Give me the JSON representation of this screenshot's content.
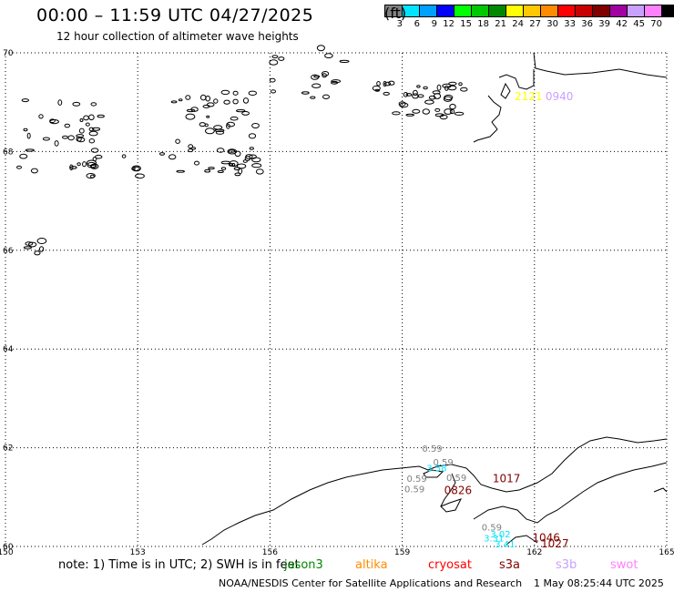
{
  "title": "00:00 – 11:59 UTC 04/27/2025",
  "subtitle": "12 hour collection of altimeter wave heights",
  "legend": {
    "unit": "(ft)",
    "bins": [
      {
        "label": "3",
        "color": "#808080"
      },
      {
        "label": "6",
        "color": "#00e5ff"
      },
      {
        "label": "9",
        "color": "#00a0ff"
      },
      {
        "label": "12",
        "color": "#0000ff"
      },
      {
        "label": "15",
        "color": "#00ff00"
      },
      {
        "label": "18",
        "color": "#00c800"
      },
      {
        "label": "21",
        "color": "#008800"
      },
      {
        "label": "24",
        "color": "#ffff00"
      },
      {
        "label": "27",
        "color": "#ffc800"
      },
      {
        "label": "30",
        "color": "#ff8c00"
      },
      {
        "label": "33",
        "color": "#ff0000"
      },
      {
        "label": "36",
        "color": "#c80000"
      },
      {
        "label": "39",
        "color": "#800000"
      },
      {
        "label": "42",
        "color": "#a000a0"
      },
      {
        "label": "45",
        "color": "#c8a0ff"
      },
      {
        "label": "70",
        "color": "#ff80ff"
      },
      {
        "label": "",
        "color": "#000000"
      }
    ]
  },
  "map": {
    "lon_min": 150,
    "lon_max": 165,
    "lat_min": 60,
    "lat_max": 70,
    "lon_ticks": [
      "150",
      "153",
      "156",
      "159",
      "162",
      "165"
    ],
    "lat_ticks": [
      "70",
      "68",
      "66",
      "64",
      "62",
      "60"
    ],
    "grid": "dotted"
  },
  "annotations": [
    {
      "text": "2121",
      "color": "#ffff00",
      "lon": 161.55,
      "lat": 69.04
    },
    {
      "text": "0940",
      "color": "#c8a0ff",
      "lon": 162.25,
      "lat": 69.04
    },
    {
      "text": "0.59",
      "color": "#808080",
      "lon": 159.45,
      "lat": 61.92
    },
    {
      "text": "0.59",
      "color": "#808080",
      "lon": 159.7,
      "lat": 61.64
    },
    {
      "text": "3.58",
      "color": "#00e5ff",
      "lon": 159.55,
      "lat": 61.52
    },
    {
      "text": "0.59",
      "color": "#808080",
      "lon": 159.1,
      "lat": 61.31
    },
    {
      "text": "0.59",
      "color": "#808080",
      "lon": 160.0,
      "lat": 61.33
    },
    {
      "text": "1017",
      "color": "#800000",
      "lon": 161.05,
      "lat": 61.3
    },
    {
      "text": "0.59",
      "color": "#808080",
      "lon": 159.05,
      "lat": 61.1
    },
    {
      "text": "0826",
      "color": "#800000",
      "lon": 159.95,
      "lat": 61.06
    },
    {
      "text": "0.59",
      "color": "#808080",
      "lon": 160.8,
      "lat": 60.32
    },
    {
      "text": "3.02",
      "color": "#00e5ff",
      "lon": 161.0,
      "lat": 60.18
    },
    {
      "text": "3.31",
      "color": "#00e5ff",
      "lon": 160.85,
      "lat": 60.1
    },
    {
      "text": "3.41",
      "color": "#00e5ff",
      "lon": 161.1,
      "lat": 59.98
    },
    {
      "text": "1046",
      "color": "#800000",
      "lon": 161.95,
      "lat": 60.1
    },
    {
      "text": "1027",
      "color": "#800000",
      "lon": 162.15,
      "lat": 59.98
    }
  ],
  "footer": {
    "note": "note:  1) Time is in UTC;  2) SWH is in feet",
    "satellites": [
      {
        "name": "jason3",
        "color": "#008800"
      },
      {
        "name": "altika",
        "color": "#ff8c00"
      },
      {
        "name": "cryosat",
        "color": "#ff0000"
      },
      {
        "name": "s3a",
        "color": "#800000"
      },
      {
        "name": "s3b",
        "color": "#c8a0ff"
      },
      {
        "name": "swot",
        "color": "#ff80ff"
      }
    ],
    "credit": "NOAA/NESDIS Center for Satellite Applications and Research",
    "timestamp": "1 May 08:25:44 UTC 2025"
  }
}
